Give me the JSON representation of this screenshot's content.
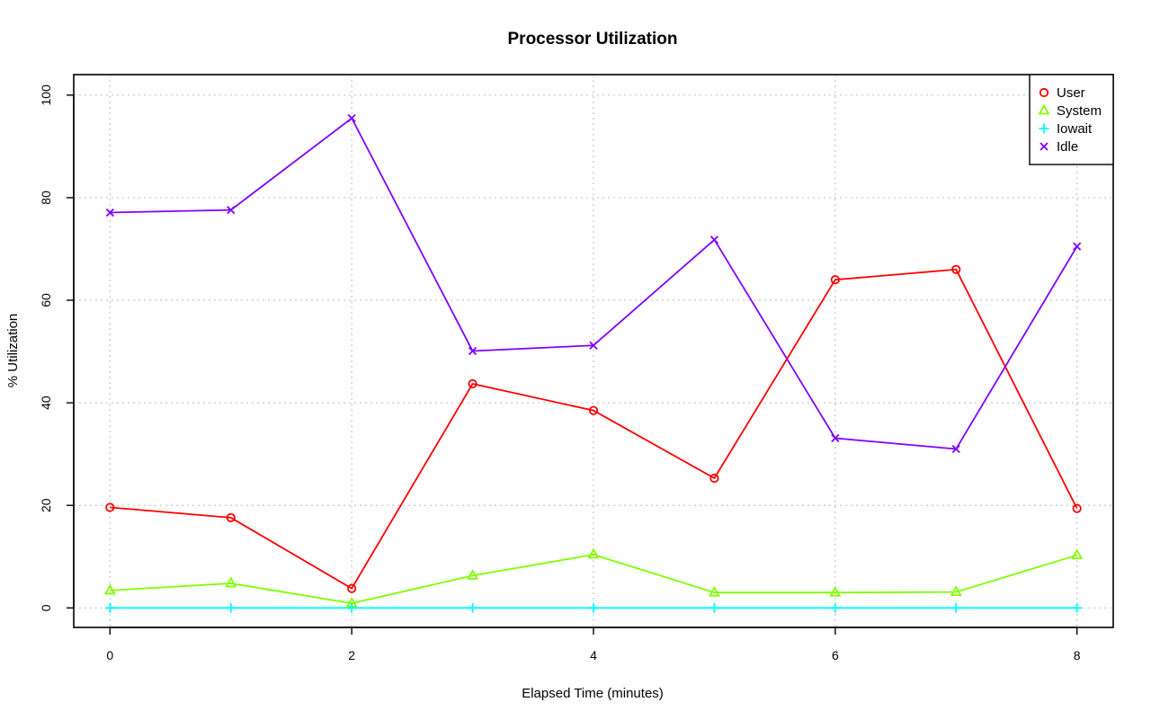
{
  "chart_data": {
    "type": "line",
    "title": "Processor Utilization",
    "xlabel": "Elapsed Time (minutes)",
    "ylabel": "% Utilization",
    "xlim": [
      -0.3,
      8.3
    ],
    "ylim": [
      -3.8,
      104
    ],
    "xticks": [
      0,
      2,
      4,
      6,
      8
    ],
    "yticks": [
      0,
      20,
      40,
      60,
      80,
      100
    ],
    "grid": true,
    "legend_position": "top-right",
    "x": [
      0,
      1,
      2,
      3,
      4,
      5,
      6,
      7,
      8
    ],
    "series": [
      {
        "name": "User",
        "color": "#ff0000",
        "marker": "circle",
        "values": [
          19.6,
          17.6,
          3.8,
          43.7,
          38.5,
          25.3,
          64.0,
          66.0,
          19.4
        ]
      },
      {
        "name": "System",
        "color": "#80ff00",
        "marker": "triangle",
        "values": [
          3.4,
          4.8,
          0.9,
          6.3,
          10.4,
          3.0,
          3.0,
          3.1,
          10.3
        ]
      },
      {
        "name": "Iowait",
        "color": "#00ffff",
        "marker": "plus",
        "values": [
          0,
          0,
          0,
          0,
          0,
          0,
          0,
          0,
          0
        ]
      },
      {
        "name": "Idle",
        "color": "#8000ff",
        "marker": "cross",
        "values": [
          77.1,
          77.6,
          95.5,
          50.1,
          51.2,
          71.8,
          33.1,
          31.0,
          70.5
        ]
      }
    ]
  }
}
